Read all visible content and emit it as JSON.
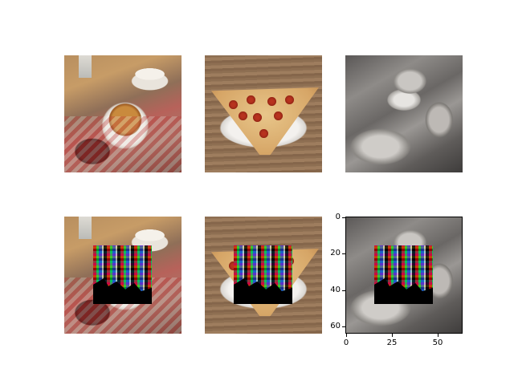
{
  "figure": {
    "rows": [
      {
        "images": [
          "breakfast",
          "pizza",
          "baby"
        ],
        "occluded": false
      },
      {
        "images": [
          "breakfast",
          "pizza",
          "baby"
        ],
        "occluded": true
      }
    ]
  },
  "axes": {
    "y_ticks": [
      "0",
      "20",
      "40",
      "60"
    ],
    "x_ticks": [
      "0",
      "25",
      "50"
    ]
  }
}
